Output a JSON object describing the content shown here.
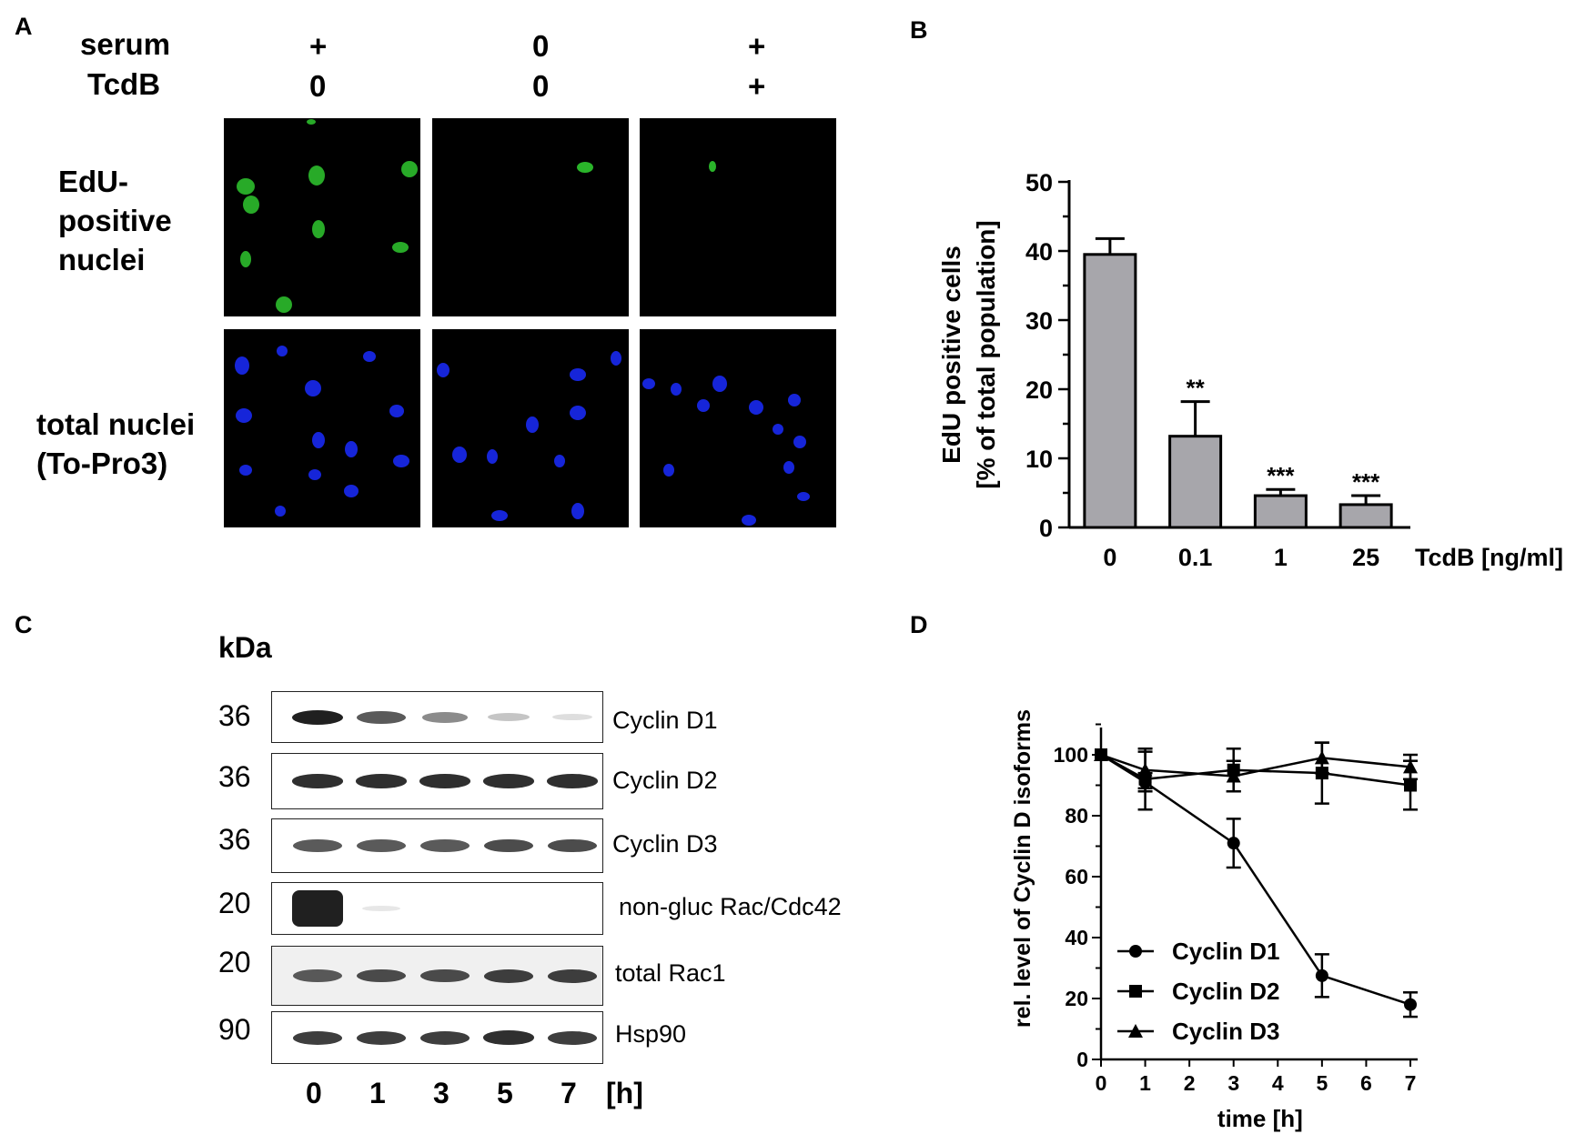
{
  "panel_a": {
    "letter": "A",
    "row_headers": [
      {
        "label": "serum",
        "values": [
          "+",
          "0",
          "+"
        ]
      },
      {
        "label": "TcdB",
        "values": [
          "0",
          "0",
          "+"
        ]
      }
    ],
    "rows": [
      {
        "label_lines": [
          "EdU-",
          "positive",
          "nuclei"
        ],
        "stain_color": "#2fc82f"
      },
      {
        "label_lines": [
          "total nuclei",
          "(To-Pro3)"
        ],
        "stain_color": "#1a2cff"
      }
    ]
  },
  "panel_b_letter": "B",
  "panel_c": {
    "letter": "C",
    "unit": "kDa",
    "time_unit": "[h]",
    "lanes": [
      "0",
      "1",
      "3",
      "5",
      "7"
    ],
    "blots": [
      {
        "kda": "36",
        "protein": "Cyclin D1",
        "intensities": [
          1.0,
          0.8,
          0.6,
          0.3,
          0.12
        ]
      },
      {
        "kda": "36",
        "protein": "Cyclin D2",
        "intensities": [
          0.95,
          0.95,
          0.95,
          0.95,
          0.95
        ]
      },
      {
        "kda": "36",
        "protein": "Cyclin D3",
        "intensities": [
          0.8,
          0.8,
          0.8,
          0.85,
          0.85
        ]
      },
      {
        "kda": "20",
        "protein": "non-gluc Rac/Cdc42",
        "intensities": [
          1.0,
          0.05,
          0,
          0,
          0
        ]
      },
      {
        "kda": "20",
        "protein": "total Rac1",
        "intensities": [
          0.8,
          0.85,
          0.85,
          0.9,
          0.9
        ]
      },
      {
        "kda": "90",
        "protein": "Hsp90",
        "intensities": [
          0.9,
          0.9,
          0.9,
          0.95,
          0.9
        ]
      }
    ]
  },
  "panel_d_letter": "D",
  "chart_data": [
    {
      "type": "bar",
      "categories": [
        "0",
        "0.1",
        "1",
        "25"
      ],
      "values": [
        39.5,
        13.2,
        4.6,
        3.3
      ],
      "errors": [
        2.3,
        5.0,
        0.9,
        1.3
      ],
      "significance": [
        "",
        "**",
        "***",
        "***"
      ],
      "xlabel": "TcdB [ng/ml]",
      "ylabel_lines": [
        "EdU positive cells",
        "[% of total population]"
      ],
      "ylim": [
        0,
        50
      ],
      "yticks": [
        0,
        10,
        20,
        30,
        40,
        50
      ],
      "bar_color": "#a7a6ab"
    },
    {
      "type": "line",
      "x": [
        0,
        1,
        3,
        5,
        7
      ],
      "xticks": [
        0,
        1,
        2,
        3,
        4,
        5,
        6,
        7
      ],
      "xlim": [
        0,
        7
      ],
      "ylim": [
        0,
        100
      ],
      "yticks": [
        0,
        20,
        40,
        60,
        80,
        100
      ],
      "xlabel": "time [h]",
      "ylabel": "rel. level of Cyclin D isoforms",
      "legend_position": "bottom-left",
      "series": [
        {
          "name": "Cyclin D1",
          "marker": "circle",
          "values": [
            100,
            91,
            71,
            27.5,
            18
          ],
          "errors": [
            0,
            3,
            8,
            7,
            4
          ]
        },
        {
          "name": "Cyclin D2",
          "marker": "square",
          "values": [
            100,
            92,
            95,
            94,
            90
          ],
          "errors": [
            0,
            10,
            7,
            10,
            8
          ]
        },
        {
          "name": "Cyclin D3",
          "marker": "triangle",
          "values": [
            100,
            95,
            93,
            99,
            96
          ],
          "errors": [
            0,
            6,
            5,
            5,
            4
          ]
        }
      ]
    }
  ]
}
